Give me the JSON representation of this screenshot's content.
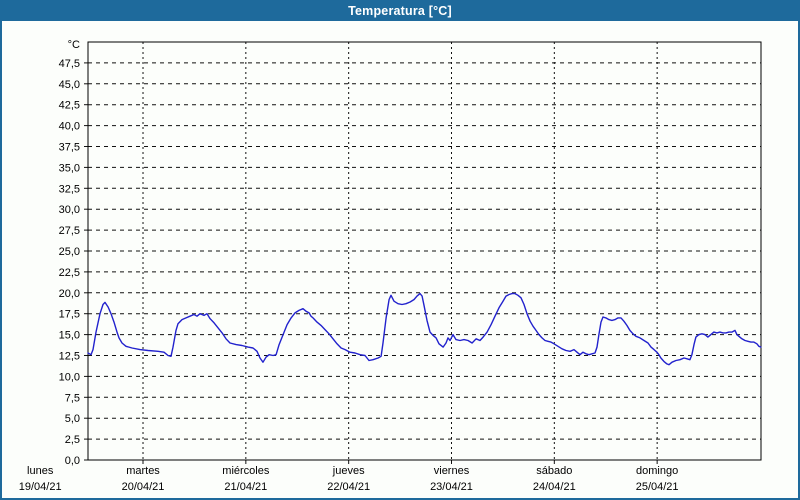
{
  "window": {
    "title": "Temperatura [°C]"
  },
  "colors": {
    "titlebar_blue": "#1e6a9c",
    "line_blue": "#2222cd",
    "grid_black": "#111111",
    "panel_background": "#fcfefb",
    "title_text": "#ffffff"
  },
  "chart_data": {
    "type": "line",
    "title": "Temperatura [°C]",
    "unit_label": "°C",
    "legend": "none",
    "grid": "dashed",
    "y_axis": {
      "min": 0,
      "max": 50,
      "step": 2.5,
      "label_min": 0.0,
      "label_max": 47.5,
      "decimal_separator": ","
    },
    "x_axis": {
      "start_day_offset": 0.465,
      "end_day_offset": 7.01,
      "day_tick_offsets": [
        1,
        2,
        3,
        4,
        5,
        6
      ],
      "categories": [
        {
          "day": "lunes",
          "date": "19/04/21",
          "offset": 0
        },
        {
          "day": "martes",
          "date": "20/04/21",
          "offset": 1
        },
        {
          "day": "miércoles",
          "date": "21/04/21",
          "offset": 2
        },
        {
          "day": "jueves",
          "date": "22/04/21",
          "offset": 3
        },
        {
          "day": "viernes",
          "date": "23/04/21",
          "offset": 4
        },
        {
          "day": "sábado",
          "date": "24/04/21",
          "offset": 5
        },
        {
          "day": "domingo",
          "date": "25/04/21",
          "offset": 6
        }
      ]
    },
    "series": [
      {
        "name": "Temperatura",
        "color": "#2222cd",
        "points": [
          [
            0.465,
            12.8
          ],
          [
            0.494,
            12.6
          ],
          [
            0.514,
            13.2
          ],
          [
            0.543,
            15.3
          ],
          [
            0.582,
            17.5
          ],
          [
            0.611,
            18.6
          ],
          [
            0.63,
            18.85
          ],
          [
            0.66,
            18.3
          ],
          [
            0.689,
            17.5
          ],
          [
            0.718,
            16.5
          ],
          [
            0.747,
            15.3
          ],
          [
            0.766,
            14.6
          ],
          [
            0.796,
            14.0
          ],
          [
            0.835,
            13.6
          ],
          [
            0.893,
            13.4
          ],
          [
            0.971,
            13.2
          ],
          [
            1.049,
            13.1
          ],
          [
            1.146,
            13.0
          ],
          [
            1.204,
            12.9
          ],
          [
            1.243,
            12.5
          ],
          [
            1.272,
            12.4
          ],
          [
            1.292,
            13.5
          ],
          [
            1.321,
            15.5
          ],
          [
            1.34,
            16.3
          ],
          [
            1.379,
            16.8
          ],
          [
            1.418,
            17.0
          ],
          [
            1.457,
            17.2
          ],
          [
            1.496,
            17.4
          ],
          [
            1.525,
            17.2
          ],
          [
            1.554,
            17.5
          ],
          [
            1.593,
            17.3
          ],
          [
            1.622,
            17.5
          ],
          [
            1.652,
            16.9
          ],
          [
            1.691,
            16.4
          ],
          [
            1.73,
            15.8
          ],
          [
            1.769,
            15.2
          ],
          [
            1.807,
            14.5
          ],
          [
            1.846,
            14.0
          ],
          [
            1.905,
            13.8
          ],
          [
            1.963,
            13.7
          ],
          [
            2.021,
            13.5
          ],
          [
            2.07,
            13.4
          ],
          [
            2.109,
            13.0
          ],
          [
            2.138,
            12.2
          ],
          [
            2.167,
            11.7
          ],
          [
            2.196,
            12.3
          ],
          [
            2.226,
            12.6
          ],
          [
            2.265,
            12.5
          ],
          [
            2.294,
            12.6
          ],
          [
            2.323,
            13.8
          ],
          [
            2.362,
            15.0
          ],
          [
            2.401,
            16.2
          ],
          [
            2.44,
            17.0
          ],
          [
            2.478,
            17.6
          ],
          [
            2.517,
            17.9
          ],
          [
            2.556,
            18.1
          ],
          [
            2.585,
            17.8
          ],
          [
            2.615,
            17.6
          ],
          [
            2.634,
            17.2
          ],
          [
            2.653,
            17.0
          ],
          [
            2.692,
            16.5
          ],
          [
            2.731,
            16.1
          ],
          [
            2.77,
            15.6
          ],
          [
            2.809,
            15.1
          ],
          [
            2.848,
            14.5
          ],
          [
            2.887,
            13.9
          ],
          [
            2.926,
            13.4
          ],
          [
            2.965,
            13.2
          ],
          [
            3.013,
            12.9
          ],
          [
            3.062,
            12.8
          ],
          [
            3.111,
            12.6
          ],
          [
            3.159,
            12.5
          ],
          [
            3.198,
            11.9
          ],
          [
            3.237,
            12.0
          ],
          [
            3.286,
            12.2
          ],
          [
            3.315,
            12.4
          ],
          [
            3.334,
            14.0
          ],
          [
            3.364,
            17.0
          ],
          [
            3.393,
            19.2
          ],
          [
            3.412,
            19.7
          ],
          [
            3.441,
            19.0
          ],
          [
            3.48,
            18.7
          ],
          [
            3.519,
            18.6
          ],
          [
            3.558,
            18.7
          ],
          [
            3.597,
            18.9
          ],
          [
            3.636,
            19.2
          ],
          [
            3.665,
            19.6
          ],
          [
            3.694,
            19.9
          ],
          [
            3.714,
            19.6
          ],
          [
            3.733,
            18.5
          ],
          [
            3.762,
            16.7
          ],
          [
            3.791,
            15.3
          ],
          [
            3.821,
            14.9
          ],
          [
            3.85,
            14.6
          ],
          [
            3.879,
            13.9
          ],
          [
            3.918,
            13.5
          ],
          [
            3.947,
            14.0
          ],
          [
            3.966,
            14.6
          ],
          [
            3.986,
            14.3
          ],
          [
            4.015,
            15.0
          ],
          [
            4.044,
            14.4
          ],
          [
            4.083,
            14.3
          ],
          [
            4.122,
            14.4
          ],
          [
            4.161,
            14.3
          ],
          [
            4.2,
            14.0
          ],
          [
            4.239,
            14.5
          ],
          [
            4.277,
            14.3
          ],
          [
            4.307,
            14.7
          ],
          [
            4.346,
            15.3
          ],
          [
            4.385,
            16.2
          ],
          [
            4.423,
            17.2
          ],
          [
            4.462,
            18.2
          ],
          [
            4.501,
            19.0
          ],
          [
            4.53,
            19.6
          ],
          [
            4.56,
            19.8
          ],
          [
            4.589,
            19.9
          ],
          [
            4.618,
            19.9
          ],
          [
            4.647,
            19.7
          ],
          [
            4.676,
            19.4
          ],
          [
            4.705,
            18.6
          ],
          [
            4.734,
            17.5
          ],
          [
            4.764,
            16.6
          ],
          [
            4.793,
            16.0
          ],
          [
            4.822,
            15.5
          ],
          [
            4.851,
            15.0
          ],
          [
            4.88,
            14.6
          ],
          [
            4.909,
            14.3
          ],
          [
            4.938,
            14.2
          ],
          [
            4.968,
            14.1
          ],
          [
            4.997,
            13.9
          ],
          [
            5.036,
            13.6
          ],
          [
            5.075,
            13.3
          ],
          [
            5.114,
            13.1
          ],
          [
            5.153,
            13.0
          ],
          [
            5.191,
            13.2
          ],
          [
            5.221,
            12.9
          ],
          [
            5.25,
            12.6
          ],
          [
            5.279,
            12.9
          ],
          [
            5.308,
            12.7
          ],
          [
            5.337,
            12.6
          ],
          [
            5.366,
            12.7
          ],
          [
            5.396,
            12.8
          ],
          [
            5.415,
            13.5
          ],
          [
            5.434,
            15.0
          ],
          [
            5.454,
            16.5
          ],
          [
            5.473,
            17.1
          ],
          [
            5.502,
            17.0
          ],
          [
            5.531,
            16.8
          ],
          [
            5.56,
            16.7
          ],
          [
            5.59,
            16.8
          ],
          [
            5.619,
            17.0
          ],
          [
            5.648,
            17.0
          ],
          [
            5.677,
            16.6
          ],
          [
            5.706,
            16.1
          ],
          [
            5.735,
            15.5
          ],
          [
            5.765,
            15.1
          ],
          [
            5.794,
            14.8
          ],
          [
            5.833,
            14.6
          ],
          [
            5.872,
            14.3
          ],
          [
            5.911,
            14.0
          ],
          [
            5.94,
            13.5
          ],
          [
            5.969,
            13.2
          ],
          [
            5.998,
            12.9
          ],
          [
            6.017,
            12.6
          ],
          [
            6.037,
            12.2
          ],
          [
            6.066,
            11.8
          ],
          [
            6.095,
            11.5
          ],
          [
            6.115,
            11.4
          ],
          [
            6.144,
            11.7
          ],
          [
            6.183,
            11.9
          ],
          [
            6.222,
            12.0
          ],
          [
            6.261,
            12.2
          ],
          [
            6.29,
            12.1
          ],
          [
            6.319,
            12.0
          ],
          [
            6.338,
            12.6
          ],
          [
            6.358,
            13.8
          ],
          [
            6.377,
            14.7
          ],
          [
            6.406,
            15.0
          ],
          [
            6.435,
            15.1
          ],
          [
            6.465,
            15.0
          ],
          [
            6.494,
            14.7
          ],
          [
            6.523,
            15.0
          ],
          [
            6.552,
            15.3
          ],
          [
            6.581,
            15.2
          ],
          [
            6.61,
            15.3
          ],
          [
            6.64,
            15.2
          ],
          [
            6.669,
            15.2
          ],
          [
            6.698,
            15.3
          ],
          [
            6.727,
            15.3
          ],
          [
            6.757,
            15.5
          ],
          [
            6.776,
            15.0
          ],
          [
            6.795,
            14.8
          ],
          [
            6.824,
            14.5
          ],
          [
            6.854,
            14.3
          ],
          [
            6.883,
            14.2
          ],
          [
            6.912,
            14.1
          ],
          [
            6.941,
            14.1
          ],
          [
            6.97,
            13.9
          ],
          [
            6.99,
            13.6
          ],
          [
            7.009,
            13.5
          ]
        ]
      }
    ]
  }
}
